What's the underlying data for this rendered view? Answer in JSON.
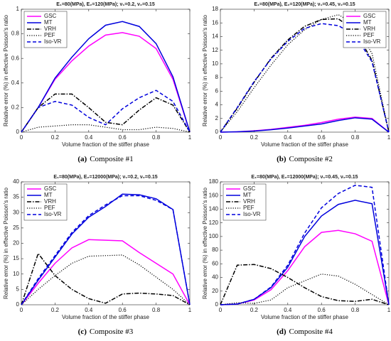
{
  "chart_data": [
    {
      "type": "line",
      "caption_label": "(a)",
      "caption": "Composite #1",
      "title": "E₁=80(MPa), E₂=120(MPa); ν₁=0.2, ν₂=0.15",
      "x_label": "Volume fraction of the stiffer phase",
      "y_label": "Relative error (%) in effective Poisson's ratio",
      "x": [
        0,
        0.1,
        0.2,
        0.3,
        0.4,
        0.5,
        0.6,
        0.7,
        0.8,
        0.9,
        1
      ],
      "xlim": [
        0,
        1
      ],
      "xticks": [
        0,
        0.2,
        0.4,
        0.6,
        0.8,
        1
      ],
      "ylim": [
        0,
        1
      ],
      "yticks": [
        0,
        0.2,
        0.4,
        0.6,
        0.8,
        1
      ],
      "legend": "upper-left",
      "series": [
        {
          "name": "GSC",
          "color": "#ff00ff",
          "style": "solid",
          "values": [
            0,
            0.2,
            0.43,
            0.58,
            0.7,
            0.79,
            0.81,
            0.78,
            0.68,
            0.43,
            0
          ]
        },
        {
          "name": "MT",
          "color": "#0000dd",
          "style": "solid",
          "values": [
            0,
            0.2,
            0.44,
            0.61,
            0.76,
            0.87,
            0.9,
            0.86,
            0.72,
            0.45,
            0
          ]
        },
        {
          "name": "VRH",
          "color": "#000000",
          "style": "dashdot",
          "values": [
            0,
            0.2,
            0.31,
            0.31,
            0.2,
            0.08,
            0.06,
            0.18,
            0.28,
            0.22,
            0
          ]
        },
        {
          "name": "PEF",
          "color": "#000000",
          "style": "dotted",
          "values": [
            0,
            0.04,
            0.05,
            0.06,
            0.06,
            0.04,
            0.02,
            0.02,
            0.04,
            0.03,
            0
          ]
        },
        {
          "name": "Iso-VR",
          "color": "#0000dd",
          "style": "dashed",
          "values": [
            0,
            0.2,
            0.25,
            0.22,
            0.12,
            0.06,
            0.19,
            0.28,
            0.34,
            0.25,
            0
          ]
        }
      ]
    },
    {
      "type": "line",
      "caption_label": "(b)",
      "caption": "Composite #2",
      "title": "E₁=80(MPa), E₂=120(MPa); ν₁=0.45, ν₂=0.15",
      "x_label": "Volume fraction of the stiffer phase",
      "y_label": "Relative error (%) in effective Poisson's ratio",
      "x": [
        0,
        0.1,
        0.2,
        0.3,
        0.4,
        0.5,
        0.6,
        0.7,
        0.8,
        0.9,
        1
      ],
      "xlim": [
        0,
        1
      ],
      "xticks": [
        0,
        0.2,
        0.4,
        0.6,
        0.8,
        1
      ],
      "ylim": [
        0,
        18
      ],
      "yticks": [
        0,
        2,
        4,
        6,
        8,
        10,
        12,
        14,
        16,
        18
      ],
      "legend": "upper-right",
      "series": [
        {
          "name": "GSC",
          "color": "#ff00ff",
          "style": "solid",
          "values": [
            0,
            0.05,
            0.2,
            0.4,
            0.7,
            1.0,
            1.4,
            1.9,
            2.2,
            2.0,
            0
          ]
        },
        {
          "name": "MT",
          "color": "#0000dd",
          "style": "solid",
          "values": [
            0,
            0.05,
            0.15,
            0.35,
            0.6,
            0.9,
            1.2,
            1.7,
            2.1,
            1.9,
            0
          ]
        },
        {
          "name": "VRH",
          "color": "#000000",
          "style": "dashdot",
          "values": [
            0,
            3.5,
            7.3,
            10.8,
            13.5,
            15.5,
            16.5,
            16.6,
            14.8,
            10.5,
            0
          ]
        },
        {
          "name": "PEF",
          "color": "#000000",
          "style": "dotted",
          "values": [
            0,
            3,
            6.5,
            9.8,
            12.8,
            15,
            16.5,
            17.2,
            15.8,
            11.5,
            0
          ]
        },
        {
          "name": "Iso-VR",
          "color": "#0000dd",
          "style": "dashed",
          "values": [
            0,
            3.6,
            7.4,
            10.7,
            13.3,
            15.2,
            15.9,
            15.6,
            14.2,
            10.3,
            0
          ]
        }
      ]
    },
    {
      "type": "line",
      "caption_label": "(c)",
      "caption": "Composite #3",
      "title": "E₁=80(MPa), E₂=12000(MPa); ν₁=0.2, ν₂=0.15",
      "x_label": "Volume fraction of the stiffer phase",
      "y_label": "Relative error (%) in effective Poisson's ratio",
      "x": [
        0,
        0.1,
        0.2,
        0.3,
        0.4,
        0.5,
        0.6,
        0.7,
        0.8,
        0.9,
        1
      ],
      "xlim": [
        0,
        1
      ],
      "xticks": [
        0,
        0.2,
        0.4,
        0.6,
        0.8,
        1
      ],
      "ylim": [
        0,
        40
      ],
      "yticks": [
        0,
        5,
        10,
        15,
        20,
        25,
        30,
        35,
        40
      ],
      "legend": "upper-left",
      "series": [
        {
          "name": "GSC",
          "color": "#ff00ff",
          "style": "solid",
          "values": [
            0,
            7,
            13.5,
            18.5,
            21.2,
            21,
            20.8,
            17,
            13.5,
            10,
            0
          ]
        },
        {
          "name": "MT",
          "color": "#0000dd",
          "style": "solid",
          "values": [
            0,
            8,
            15.5,
            23,
            28.5,
            32,
            36,
            35.8,
            34.5,
            31,
            0
          ]
        },
        {
          "name": "VRH",
          "color": "#000000",
          "style": "dashdot",
          "values": [
            0,
            16.7,
            9.5,
            5,
            2,
            0.5,
            3.5,
            3.8,
            3.5,
            3,
            0
          ]
        },
        {
          "name": "PEF",
          "color": "#000000",
          "style": "dotted",
          "values": [
            0,
            5,
            9.5,
            13.5,
            15.8,
            16,
            16.2,
            13,
            9,
            5,
            0
          ]
        },
        {
          "name": "Iso-VR",
          "color": "#0000dd",
          "style": "dashed",
          "values": [
            0,
            8.5,
            16,
            23.5,
            29,
            32.5,
            35.5,
            35.5,
            34,
            31,
            0
          ]
        }
      ]
    },
    {
      "type": "line",
      "caption_label": "(d)",
      "caption": "Composite #4",
      "title": "E₁=80(MPa), E₂=12000(MPa); ν₁=0.45, ν₂=0.15",
      "x_label": "Volume fraction of the stiffer phase",
      "y_label": "Relative error (%) in effective Poisson's ratio",
      "x": [
        0,
        0.1,
        0.2,
        0.3,
        0.4,
        0.5,
        0.6,
        0.7,
        0.8,
        0.9,
        1
      ],
      "xlim": [
        0,
        1
      ],
      "xticks": [
        0,
        0.2,
        0.4,
        0.6,
        0.8,
        1
      ],
      "ylim": [
        0,
        180
      ],
      "yticks": [
        0,
        20,
        40,
        60,
        80,
        100,
        120,
        140,
        160,
        180
      ],
      "legend": "upper-left",
      "series": [
        {
          "name": "GSC",
          "color": "#ff00ff",
          "style": "solid",
          "values": [
            0,
            1,
            7,
            22,
            50,
            85,
            106,
            109,
            104,
            93,
            0
          ]
        },
        {
          "name": "MT",
          "color": "#0000dd",
          "style": "solid",
          "values": [
            0,
            1,
            8,
            25,
            55,
            100,
            130,
            147,
            153,
            148,
            0
          ]
        },
        {
          "name": "VRH",
          "color": "#000000",
          "style": "dashdot",
          "values": [
            0,
            58,
            59,
            53,
            40,
            25,
            12,
            6,
            5,
            8,
            0
          ]
        },
        {
          "name": "PEF",
          "color": "#000000",
          "style": "dotted",
          "values": [
            0,
            3,
            2,
            7,
            25,
            35,
            45,
            42,
            30,
            15,
            0
          ]
        },
        {
          "name": "Iso-VR",
          "color": "#0000dd",
          "style": "dashed",
          "values": [
            0,
            1,
            8,
            26,
            58,
            105,
            142,
            163,
            175,
            172,
            0
          ]
        }
      ]
    }
  ]
}
